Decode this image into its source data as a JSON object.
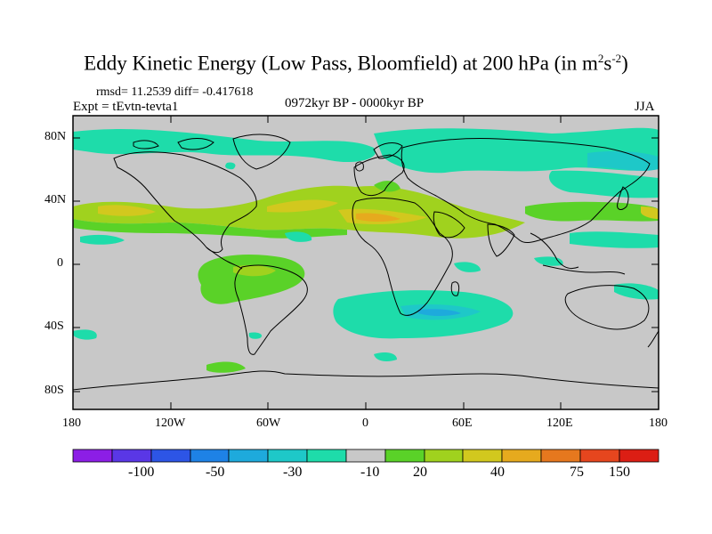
{
  "title": {
    "main": "Eddy Kinetic Energy (Low Pass, Bloomfield) at 200 hPa (in m",
    "sup1": "2",
    "mid": "s",
    "sup2": "-2",
    "end": ")"
  },
  "stats": {
    "rmsd_text": "rmsd= 11.2539 diff= -0.417618"
  },
  "experiment": "Expt = tEvtn-tevta1",
  "period": "0972kyr BP - 0000kyr BP",
  "season": "JJA",
  "axes": {
    "lat_labels": [
      "80N",
      "40N",
      "0",
      "40S",
      "80S"
    ],
    "lon_labels": [
      "180",
      "120W",
      "60W",
      "0",
      "60E",
      "120E",
      "180"
    ]
  },
  "colorbar": {
    "colors": [
      "#8c1ee6",
      "#5a37e6",
      "#2d55e6",
      "#1e82e6",
      "#1eaadc",
      "#1ec8c8",
      "#1edcaa",
      "#c8c8c8",
      "#5ad228",
      "#a0d21e",
      "#d2c81e",
      "#e6aa1e",
      "#e6781e",
      "#e6461e",
      "#dc1e14"
    ],
    "tick_labels": [
      "-100",
      "-50",
      "-30",
      "-10",
      "20",
      "40",
      "75",
      "150"
    ]
  },
  "palette": {
    "land_bg": "#c8c8c8",
    "cyan": "#1edcaa",
    "teal": "#1ec8c8",
    "blue": "#1eaadc",
    "green": "#5ad228",
    "lime": "#a0d21e",
    "yellow": "#d2c81e",
    "orange": "#e6aa1e"
  }
}
